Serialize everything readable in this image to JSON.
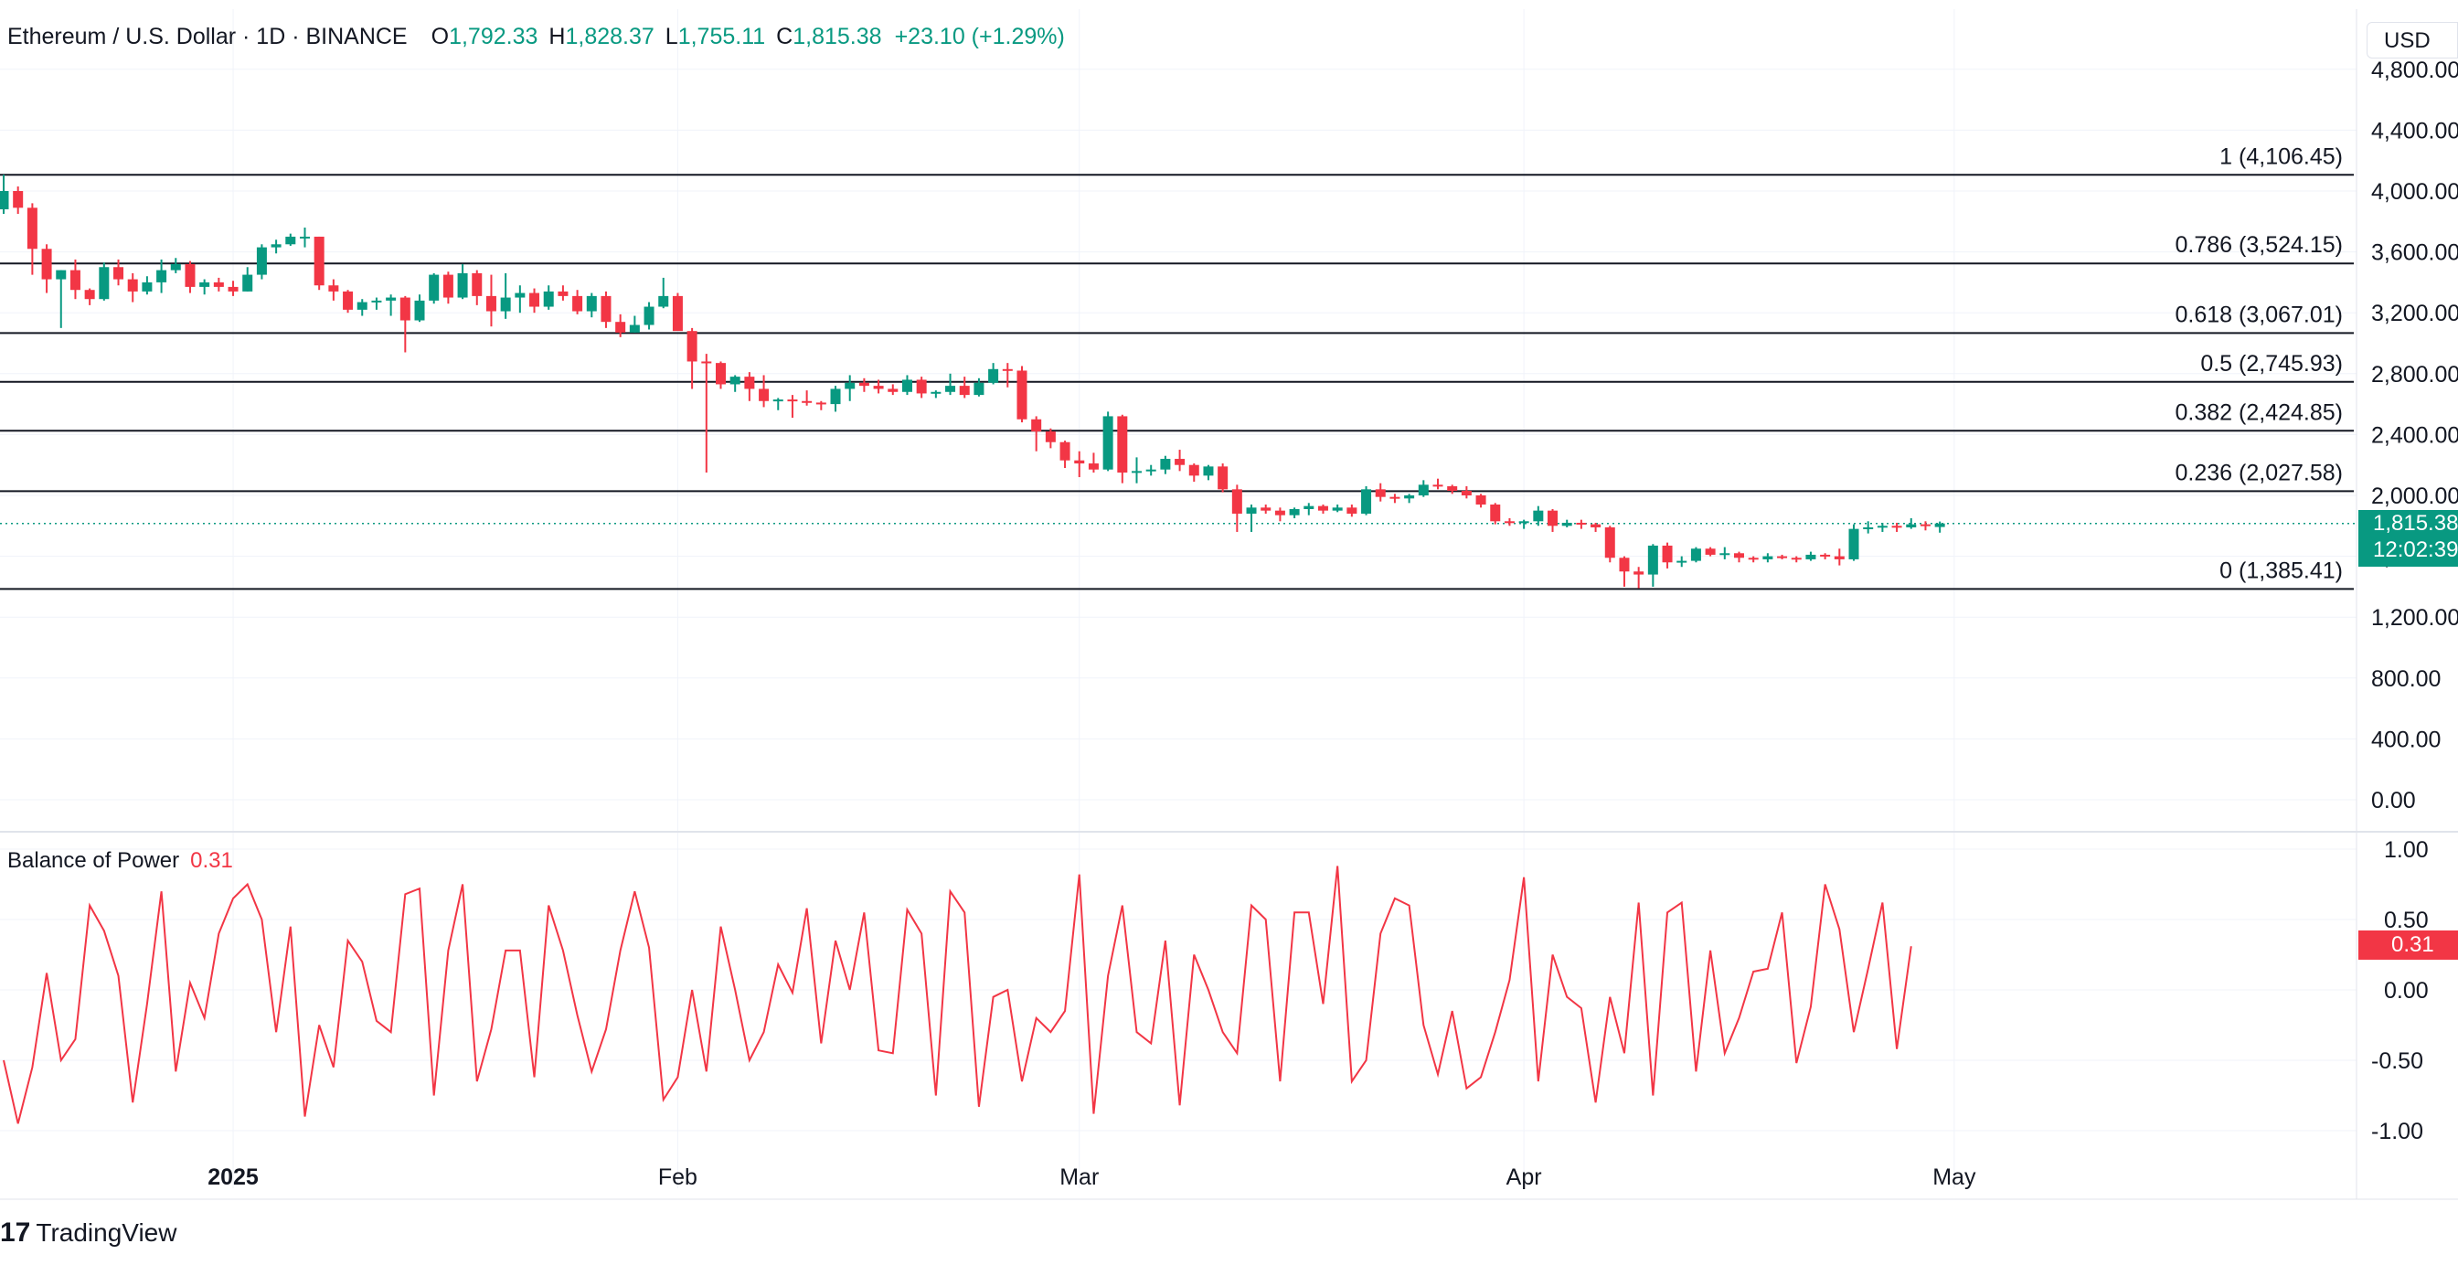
{
  "header": {
    "symbol": "Ethereum / U.S. Dollar · 1D · BINANCE",
    "o_label": "O",
    "o_value": "1,792.33",
    "h_label": "H",
    "h_value": "1,828.37",
    "l_label": "L",
    "l_value": "1,755.11",
    "c_label": "C",
    "c_value": "1,815.38",
    "change": "+23.10 (+1.29%)"
  },
  "currency": "USD",
  "price_badge": {
    "price": "1,815.38",
    "countdown": "12:02:39"
  },
  "indicator": {
    "name": "Balance of Power",
    "value": "0.31",
    "badge": "0.31"
  },
  "brand": {
    "logo": "17",
    "name": "TradingView"
  },
  "colors": {
    "up": "#089981",
    "down": "#f23645",
    "fib": "#131722",
    "grid": "#f0f3fa"
  },
  "chart_data": [
    {
      "type": "candlestick",
      "title": "Ethereum / U.S. Dollar · 1D · BINANCE",
      "x_axis_ticks": [
        "2025",
        "Feb",
        "Mar",
        "Apr",
        "May"
      ],
      "y_axis_ticks": [
        "0.00",
        "400.00",
        "800.00",
        "1,200.00",
        "1,600.00",
        "2,000.00",
        "2,400.00",
        "2,800.00",
        "3,200.00",
        "3,600.00",
        "4,000.00",
        "4,400.00",
        "4,800.00"
      ],
      "ylim": [
        0,
        4800
      ],
      "start_date": "2024-12-16",
      "dates": [
        "2024-12-16",
        "2024-12-17",
        "2024-12-18",
        "2024-12-19",
        "2024-12-20",
        "2024-12-21",
        "2024-12-22",
        "2024-12-23",
        "2024-12-24",
        "2024-12-25",
        "2024-12-26",
        "2024-12-27",
        "2024-12-28",
        "2024-12-29",
        "2024-12-30",
        "2024-12-31",
        "2025-01-01",
        "2025-01-02",
        "2025-01-03",
        "2025-01-04",
        "2025-01-05",
        "2025-01-06",
        "2025-01-07",
        "2025-01-08",
        "2025-01-09",
        "2025-01-10",
        "2025-01-11",
        "2025-01-12",
        "2025-01-13",
        "2025-01-14",
        "2025-01-15",
        "2025-01-16",
        "2025-01-17",
        "2025-01-18",
        "2025-01-19",
        "2025-01-20",
        "2025-01-21",
        "2025-01-22",
        "2025-01-23",
        "2025-01-24",
        "2025-01-25",
        "2025-01-26",
        "2025-01-27",
        "2025-01-28",
        "2025-01-29",
        "2025-01-30",
        "2025-01-31",
        "2025-02-01",
        "2025-02-02",
        "2025-02-03",
        "2025-02-04",
        "2025-02-05",
        "2025-02-06",
        "2025-02-07",
        "2025-02-08",
        "2025-02-09",
        "2025-02-10",
        "2025-02-11",
        "2025-02-12",
        "2025-02-13",
        "2025-02-14",
        "2025-02-15",
        "2025-02-16",
        "2025-02-17",
        "2025-02-18",
        "2025-02-19",
        "2025-02-20",
        "2025-02-21",
        "2025-02-22",
        "2025-02-23",
        "2025-02-24",
        "2025-02-25",
        "2025-02-26",
        "2025-02-27",
        "2025-02-28",
        "2025-03-01",
        "2025-03-02",
        "2025-03-03",
        "2025-03-04",
        "2025-03-05",
        "2025-03-06",
        "2025-03-07",
        "2025-03-08",
        "2025-03-09",
        "2025-03-10",
        "2025-03-11",
        "2025-03-12",
        "2025-03-13",
        "2025-03-14",
        "2025-03-15",
        "2025-03-16",
        "2025-03-17",
        "2025-03-18",
        "2025-03-19",
        "2025-03-20",
        "2025-03-21",
        "2025-03-22",
        "2025-03-23",
        "2025-03-24",
        "2025-03-25",
        "2025-03-26",
        "2025-03-27",
        "2025-03-28",
        "2025-03-29",
        "2025-03-30",
        "2025-03-31",
        "2025-04-01",
        "2025-04-02",
        "2025-04-03",
        "2025-04-04",
        "2025-04-05",
        "2025-04-06",
        "2025-04-07",
        "2025-04-08",
        "2025-04-09",
        "2025-04-10",
        "2025-04-11",
        "2025-04-12",
        "2025-04-13",
        "2025-04-14",
        "2025-04-15",
        "2025-04-16",
        "2025-04-17",
        "2025-04-18",
        "2025-04-19",
        "2025-04-20",
        "2025-04-21",
        "2025-04-22",
        "2025-04-23",
        "2025-04-24",
        "2025-04-25",
        "2025-04-26",
        "2025-04-27"
      ],
      "ohlc": [
        [
          3880,
          4107,
          3850,
          4000
        ],
        [
          4000,
          4030,
          3850,
          3890
        ],
        [
          3890,
          3920,
          3450,
          3620
        ],
        [
          3620,
          3650,
          3330,
          3420
        ],
        [
          3420,
          3480,
          3100,
          3480
        ],
        [
          3480,
          3550,
          3290,
          3350
        ],
        [
          3350,
          3360,
          3250,
          3290
        ],
        [
          3290,
          3530,
          3280,
          3500
        ],
        [
          3500,
          3550,
          3380,
          3420
        ],
        [
          3420,
          3460,
          3270,
          3340
        ],
        [
          3340,
          3440,
          3320,
          3400
        ],
        [
          3400,
          3550,
          3330,
          3480
        ],
        [
          3480,
          3560,
          3460,
          3520
        ],
        [
          3520,
          3540,
          3330,
          3370
        ],
        [
          3370,
          3420,
          3320,
          3400
        ],
        [
          3400,
          3430,
          3340,
          3370
        ],
        [
          3370,
          3410,
          3310,
          3340
        ],
        [
          3340,
          3500,
          3340,
          3450
        ],
        [
          3450,
          3650,
          3420,
          3630
        ],
        [
          3630,
          3680,
          3590,
          3650
        ],
        [
          3650,
          3720,
          3640,
          3700
        ],
        [
          3700,
          3760,
          3630,
          3700
        ],
        [
          3700,
          3700,
          3350,
          3380
        ],
        [
          3380,
          3420,
          3280,
          3340
        ],
        [
          3340,
          3350,
          3200,
          3220
        ],
        [
          3220,
          3290,
          3180,
          3270
        ],
        [
          3270,
          3300,
          3220,
          3280
        ],
        [
          3280,
          3320,
          3180,
          3300
        ],
        [
          3300,
          3310,
          2940,
          3150
        ],
        [
          3150,
          3320,
          3140,
          3280
        ],
        [
          3280,
          3460,
          3260,
          3450
        ],
        [
          3450,
          3470,
          3260,
          3300
        ],
        [
          3300,
          3520,
          3290,
          3460
        ],
        [
          3460,
          3480,
          3250,
          3310
        ],
        [
          3310,
          3450,
          3110,
          3210
        ],
        [
          3210,
          3460,
          3160,
          3300
        ],
        [
          3300,
          3380,
          3200,
          3330
        ],
        [
          3330,
          3360,
          3200,
          3240
        ],
        [
          3240,
          3380,
          3220,
          3340
        ],
        [
          3340,
          3380,
          3280,
          3310
        ],
        [
          3310,
          3350,
          3190,
          3210
        ],
        [
          3210,
          3330,
          3170,
          3310
        ],
        [
          3310,
          3340,
          3100,
          3140
        ],
        [
          3140,
          3190,
          3040,
          3070
        ],
        [
          3070,
          3180,
          3070,
          3120
        ],
        [
          3120,
          3270,
          3090,
          3240
        ],
        [
          3240,
          3430,
          3230,
          3310
        ],
        [
          3310,
          3330,
          3120,
          3080
        ],
        [
          3080,
          3100,
          2700,
          2880
        ],
        [
          2880,
          2930,
          2150,
          2870
        ],
        [
          2870,
          2880,
          2700,
          2730
        ],
        [
          2730,
          2790,
          2680,
          2780
        ],
        [
          2780,
          2810,
          2620,
          2700
        ],
        [
          2700,
          2790,
          2580,
          2620
        ],
        [
          2620,
          2640,
          2560,
          2630
        ],
        [
          2630,
          2660,
          2510,
          2620
        ],
        [
          2620,
          2690,
          2590,
          2610
        ],
        [
          2610,
          2620,
          2560,
          2600
        ],
        [
          2600,
          2720,
          2550,
          2700
        ],
        [
          2700,
          2790,
          2620,
          2740
        ],
        [
          2740,
          2770,
          2680,
          2720
        ],
        [
          2720,
          2760,
          2670,
          2700
        ],
        [
          2700,
          2730,
          2660,
          2680
        ],
        [
          2680,
          2790,
          2660,
          2760
        ],
        [
          2760,
          2780,
          2640,
          2670
        ],
        [
          2670,
          2690,
          2640,
          2680
        ],
        [
          2680,
          2800,
          2660,
          2720
        ],
        [
          2720,
          2780,
          2640,
          2660
        ],
        [
          2660,
          2770,
          2650,
          2740
        ],
        [
          2740,
          2870,
          2730,
          2830
        ],
        [
          2830,
          2870,
          2710,
          2820
        ],
        [
          2820,
          2850,
          2480,
          2500
        ],
        [
          2500,
          2520,
          2290,
          2420
        ],
        [
          2420,
          2440,
          2310,
          2350
        ],
        [
          2350,
          2360,
          2180,
          2230
        ],
        [
          2230,
          2290,
          2120,
          2210
        ],
        [
          2210,
          2280,
          2150,
          2170
        ],
        [
          2170,
          2550,
          2160,
          2520
        ],
        [
          2520,
          2530,
          2080,
          2150
        ],
        [
          2150,
          2250,
          2080,
          2160
        ],
        [
          2160,
          2200,
          2130,
          2170
        ],
        [
          2170,
          2260,
          2140,
          2240
        ],
        [
          2240,
          2300,
          2160,
          2200
        ],
        [
          2200,
          2210,
          2090,
          2130
        ],
        [
          2130,
          2200,
          2100,
          2190
        ],
        [
          2190,
          2210,
          2020,
          2040
        ],
        [
          2040,
          2070,
          1760,
          1880
        ],
        [
          1880,
          1940,
          1760,
          1920
        ],
        [
          1920,
          1940,
          1880,
          1900
        ],
        [
          1900,
          1920,
          1830,
          1870
        ],
        [
          1870,
          1920,
          1850,
          1910
        ],
        [
          1910,
          1950,
          1870,
          1930
        ],
        [
          1930,
          1940,
          1880,
          1900
        ],
        [
          1900,
          1940,
          1890,
          1920
        ],
        [
          1920,
          1940,
          1860,
          1880
        ],
        [
          1880,
          2060,
          1870,
          2040
        ],
        [
          2040,
          2080,
          1960,
          1990
        ],
        [
          1990,
          2010,
          1950,
          1980
        ],
        [
          1980,
          2010,
          1950,
          2000
        ],
        [
          2000,
          2100,
          1990,
          2070
        ],
        [
          2070,
          2110,
          2040,
          2060
        ],
        [
          2060,
          2070,
          2010,
          2030
        ],
        [
          2030,
          2060,
          1980,
          2000
        ],
        [
          2000,
          2010,
          1920,
          1940
        ],
        [
          1940,
          1950,
          1810,
          1830
        ],
        [
          1830,
          1850,
          1800,
          1820
        ],
        [
          1820,
          1840,
          1780,
          1830
        ],
        [
          1830,
          1930,
          1800,
          1900
        ],
        [
          1900,
          1910,
          1760,
          1800
        ],
        [
          1800,
          1840,
          1790,
          1820
        ],
        [
          1820,
          1840,
          1780,
          1810
        ],
        [
          1810,
          1820,
          1760,
          1790
        ],
        [
          1790,
          1800,
          1560,
          1590
        ],
        [
          1590,
          1600,
          1400,
          1500
        ],
        [
          1500,
          1530,
          1390,
          1480
        ],
        [
          1480,
          1680,
          1400,
          1670
        ],
        [
          1670,
          1690,
          1520,
          1560
        ],
        [
          1560,
          1600,
          1530,
          1570
        ],
        [
          1570,
          1660,
          1560,
          1650
        ],
        [
          1650,
          1660,
          1600,
          1610
        ],
        [
          1610,
          1660,
          1580,
          1620
        ],
        [
          1620,
          1630,
          1560,
          1590
        ],
        [
          1590,
          1600,
          1560,
          1580
        ],
        [
          1580,
          1620,
          1560,
          1600
        ],
        [
          1600,
          1610,
          1580,
          1590
        ],
        [
          1590,
          1600,
          1560,
          1580
        ],
        [
          1580,
          1630,
          1570,
          1610
        ],
        [
          1610,
          1620,
          1580,
          1600
        ],
        [
          1600,
          1650,
          1540,
          1580
        ],
        [
          1580,
          1810,
          1570,
          1780
        ],
        [
          1780,
          1830,
          1750,
          1790
        ],
        [
          1790,
          1820,
          1760,
          1800
        ],
        [
          1800,
          1820,
          1760,
          1790
        ],
        [
          1790,
          1850,
          1780,
          1810
        ],
        [
          1810,
          1830,
          1770,
          1800
        ],
        [
          1792.33,
          1828.37,
          1755.11,
          1815.38
        ]
      ],
      "fibonacci_levels": [
        {
          "label": "1 (4,106.45)",
          "value": 4106.45
        },
        {
          "label": "0.786 (3,524.15)",
          "value": 3524.15
        },
        {
          "label": "0.618 (3,067.01)",
          "value": 3067.01
        },
        {
          "label": "0.5 (2,745.93)",
          "value": 2745.93
        },
        {
          "label": "0.382 (2,424.85)",
          "value": 2424.85
        },
        {
          "label": "0.236 (2,027.58)",
          "value": 2027.58
        },
        {
          "label": "0 (1,385.41)",
          "value": 1385.41
        }
      ],
      "last_price": 1815.38
    },
    {
      "type": "line",
      "title": "Balance of Power",
      "y_axis_ticks": [
        "-1.00",
        "-0.50",
        "0.00",
        "0.50",
        "1.00"
      ],
      "ylim": [
        -1,
        1
      ],
      "series": [
        {
          "name": "Balance of Power",
          "values": [
            -0.5,
            -0.95,
            -0.55,
            0.12,
            -0.5,
            -0.35,
            0.6,
            0.42,
            0.1,
            -0.8,
            -0.1,
            0.7,
            -0.58,
            0.05,
            -0.2,
            0.4,
            0.65,
            0.75,
            0.5,
            -0.3,
            0.45,
            -0.9,
            -0.25,
            -0.55,
            0.35,
            0.2,
            -0.22,
            -0.3,
            0.68,
            0.72,
            -0.75,
            0.28,
            0.75,
            -0.65,
            -0.28,
            0.28,
            0.28,
            -0.62,
            0.6,
            0.28,
            -0.18,
            -0.58,
            -0.28,
            0.28,
            0.7,
            0.3,
            -0.78,
            -0.62,
            0.0,
            -0.58,
            0.45,
            0.0,
            -0.5,
            -0.3,
            0.18,
            -0.02,
            0.58,
            -0.38,
            0.35,
            0.0,
            0.55,
            -0.43,
            -0.45,
            0.57,
            0.4,
            -0.75,
            0.7,
            0.55,
            -0.83,
            -0.05,
            0.0,
            -0.65,
            -0.2,
            -0.3,
            -0.15,
            0.82,
            -0.88,
            0.1,
            0.6,
            -0.3,
            -0.38,
            0.35,
            -0.82,
            0.25,
            0.0,
            -0.3,
            -0.45,
            0.6,
            0.5,
            -0.65,
            0.55,
            0.55,
            -0.1,
            0.88,
            -0.65,
            -0.5,
            0.4,
            0.65,
            0.6,
            -0.25,
            -0.6,
            -0.15,
            -0.7,
            -0.62,
            -0.3,
            0.07,
            0.8,
            -0.65,
            0.25,
            -0.05,
            -0.13,
            -0.8,
            -0.05,
            -0.45,
            0.62,
            -0.75,
            0.55,
            0.62,
            -0.58,
            0.28,
            -0.45,
            -0.2,
            0.13,
            0.15,
            0.55,
            -0.52,
            -0.12,
            0.75,
            0.43,
            -0.3,
            0.15,
            0.62,
            -0.42,
            0.31
          ]
        }
      ]
    }
  ]
}
